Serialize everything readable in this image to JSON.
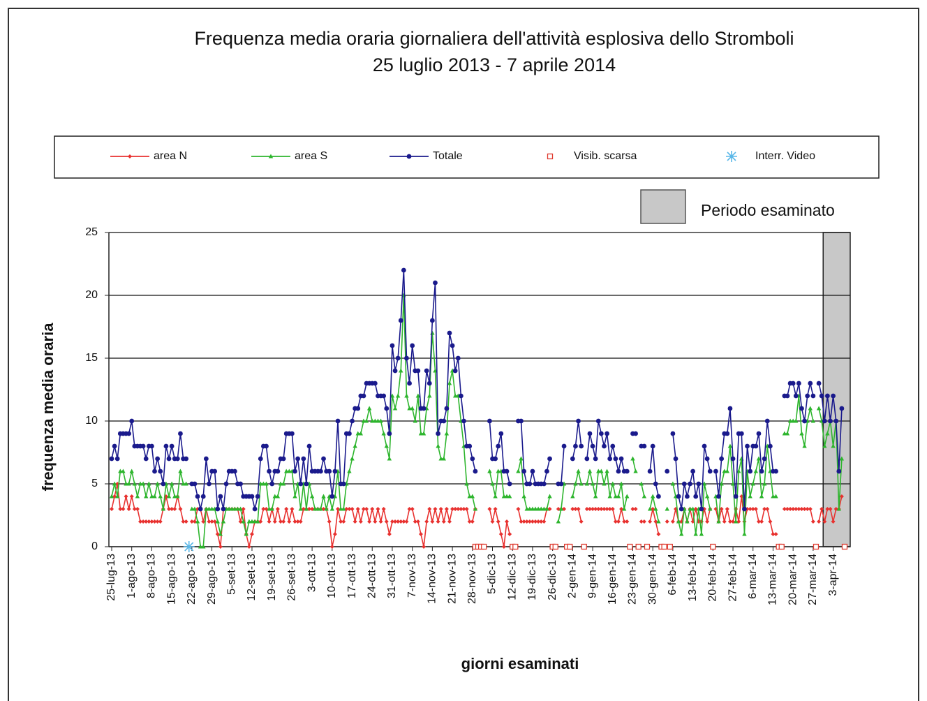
{
  "chart_data": {
    "type": "line",
    "title": "Frequenza media oraria giornaliera dell'attività esplosiva dello Stromboli",
    "subtitle": "25 luglio 2013 - 7 aprile 2014",
    "x_label": "giorni esaminati",
    "y_label": "frequenza  media oraria",
    "ylim": [
      0,
      25
    ],
    "yticks": [
      0,
      5,
      10,
      15,
      20,
      25
    ],
    "grid": true,
    "highlight": {
      "label": "Periodo esaminato",
      "from": "31-mar-14",
      "color": "#c8c8c8"
    },
    "xticks": [
      "25-lug-13",
      "1-ago-13",
      "8-ago-13",
      "15-ago-13",
      "22-ago-13",
      "29-ago-13",
      "5-set-13",
      "12-set-13",
      "19-set-13",
      "26-set-13",
      "3-ott-13",
      "10-ott-13",
      "17-ott-13",
      "24-ott-13",
      "31-ott-13",
      "7-nov-13",
      "14-nov-13",
      "21-nov-13",
      "28-nov-13",
      "5-dic-13",
      "12-dic-13",
      "19-dic-13",
      "26-dic-13",
      "2-gen-14",
      "9-gen-14",
      "16-gen-14",
      "23-gen-14",
      "30-gen-14",
      "6-feb-14",
      "13-feb-14",
      "20-feb-14",
      "27-feb-14",
      "6-mar-14",
      "13-mar-14",
      "20-mar-14",
      "27-mar-14",
      "3-apr-14"
    ],
    "x": [
      "25-lug-13",
      "26-lug-13",
      "27-lug-13",
      "28-lug-13",
      "29-lug-13",
      "30-lug-13",
      "31-lug-13",
      "1-ago-13",
      "2-ago-13",
      "3-ago-13",
      "4-ago-13",
      "5-ago-13",
      "6-ago-13",
      "7-ago-13",
      "8-ago-13",
      "9-ago-13",
      "10-ago-13",
      "11-ago-13",
      "12-ago-13",
      "13-ago-13",
      "14-ago-13",
      "15-ago-13",
      "16-ago-13",
      "17-ago-13",
      "18-ago-13",
      "19-ago-13",
      "20-ago-13",
      "21-ago-13",
      "22-ago-13",
      "23-ago-13",
      "24-ago-13",
      "25-ago-13",
      "26-ago-13",
      "27-ago-13",
      "28-ago-13",
      "29-ago-13",
      "30-ago-13",
      "31-ago-13",
      "1-set-13",
      "2-set-13",
      "3-set-13",
      "4-set-13",
      "5-set-13",
      "6-set-13",
      "7-set-13",
      "8-set-13",
      "9-set-13",
      "10-set-13",
      "11-set-13",
      "12-set-13",
      "13-set-13",
      "14-set-13",
      "15-set-13",
      "16-set-13",
      "17-set-13",
      "18-set-13",
      "19-set-13",
      "20-set-13",
      "21-set-13",
      "22-set-13",
      "23-set-13",
      "24-set-13",
      "25-set-13",
      "26-set-13",
      "27-set-13",
      "28-set-13",
      "29-set-13",
      "30-set-13",
      "1-ott-13",
      "2-ott-13",
      "3-ott-13",
      "4-ott-13",
      "5-ott-13",
      "6-ott-13",
      "7-ott-13",
      "8-ott-13",
      "9-ott-13",
      "10-ott-13",
      "11-ott-13",
      "12-ott-13",
      "13-ott-13",
      "14-ott-13",
      "15-ott-13",
      "16-ott-13",
      "17-ott-13",
      "18-ott-13",
      "19-ott-13",
      "20-ott-13",
      "21-ott-13",
      "22-ott-13",
      "23-ott-13",
      "24-ott-13",
      "25-ott-13",
      "26-ott-13",
      "27-ott-13",
      "28-ott-13",
      "29-ott-13",
      "30-ott-13",
      "31-ott-13",
      "1-nov-13",
      "2-nov-13",
      "3-nov-13",
      "4-nov-13",
      "5-nov-13",
      "6-nov-13",
      "7-nov-13",
      "8-nov-13",
      "9-nov-13",
      "10-nov-13",
      "11-nov-13",
      "12-nov-13",
      "13-nov-13",
      "14-nov-13",
      "15-nov-13",
      "16-nov-13",
      "17-nov-13",
      "18-nov-13",
      "19-nov-13",
      "20-nov-13",
      "21-nov-13",
      "22-nov-13",
      "23-nov-13",
      "24-nov-13",
      "25-nov-13",
      "26-nov-13",
      "27-nov-13",
      "28-nov-13",
      "29-nov-13",
      "30-nov-13",
      "1-dic-13",
      "2-dic-13",
      "3-dic-13",
      "4-dic-13",
      "5-dic-13",
      "6-dic-13",
      "7-dic-13",
      "8-dic-13",
      "9-dic-13",
      "10-dic-13",
      "11-dic-13",
      "12-dic-13",
      "13-dic-13",
      "14-dic-13",
      "15-dic-13",
      "16-dic-13",
      "17-dic-13",
      "18-dic-13",
      "19-dic-13",
      "20-dic-13",
      "21-dic-13",
      "22-dic-13",
      "23-dic-13",
      "24-dic-13",
      "25-dic-13",
      "26-dic-13",
      "27-dic-13",
      "28-dic-13",
      "29-dic-13",
      "30-dic-13",
      "31-dic-13",
      "1-gen-14",
      "2-gen-14",
      "3-gen-14",
      "4-gen-14",
      "5-gen-14",
      "6-gen-14",
      "7-gen-14",
      "8-gen-14",
      "9-gen-14",
      "10-gen-14",
      "11-gen-14",
      "12-gen-14",
      "13-gen-14",
      "14-gen-14",
      "15-gen-14",
      "16-gen-14",
      "17-gen-14",
      "18-gen-14",
      "19-gen-14",
      "20-gen-14",
      "21-gen-14",
      "22-gen-14",
      "23-gen-14",
      "24-gen-14",
      "25-gen-14",
      "26-gen-14",
      "27-gen-14",
      "28-gen-14",
      "29-gen-14",
      "30-gen-14",
      "31-gen-14",
      "1-feb-14",
      "2-feb-14",
      "3-feb-14",
      "4-feb-14",
      "5-feb-14",
      "6-feb-14",
      "7-feb-14",
      "8-feb-14",
      "9-feb-14",
      "10-feb-14",
      "11-feb-14",
      "12-feb-14",
      "13-feb-14",
      "14-feb-14",
      "15-feb-14",
      "16-feb-14",
      "17-feb-14",
      "18-feb-14",
      "19-feb-14",
      "20-feb-14",
      "21-feb-14",
      "22-feb-14",
      "23-feb-14",
      "24-feb-14",
      "25-feb-14",
      "26-feb-14",
      "27-feb-14",
      "28-feb-14",
      "1-mar-14",
      "2-mar-14",
      "3-mar-14",
      "4-mar-14",
      "5-mar-14",
      "6-mar-14",
      "7-mar-14",
      "8-mar-14",
      "9-mar-14",
      "10-mar-14",
      "11-mar-14",
      "12-mar-14",
      "13-mar-14",
      "14-mar-14",
      "15-mar-14",
      "16-mar-14",
      "17-mar-14",
      "18-mar-14",
      "19-mar-14",
      "20-mar-14",
      "21-mar-14",
      "22-mar-14",
      "23-mar-14",
      "24-mar-14",
      "25-mar-14",
      "26-mar-14",
      "27-mar-14",
      "28-mar-14",
      "29-mar-14",
      "30-mar-14",
      "31-mar-14",
      "1-apr-14",
      "2-apr-14",
      "3-apr-14",
      "4-apr-14",
      "5-apr-14",
      "6-apr-14",
      "7-apr-14"
    ],
    "series": [
      {
        "name": "area N",
        "color": "#e8312f",
        "marker": "diamond",
        "values": [
          3,
          4,
          5,
          3,
          3,
          4,
          3,
          4,
          3,
          3,
          2,
          2,
          2,
          2,
          2,
          2,
          2,
          2,
          3,
          4,
          3,
          3,
          3,
          4,
          3,
          2,
          2,
          null,
          2,
          2,
          3,
          3,
          2,
          3,
          2,
          2,
          2,
          1,
          0,
          3,
          3,
          3,
          3,
          3,
          3,
          2,
          3,
          1,
          0,
          1,
          2,
          2,
          2,
          3,
          3,
          2,
          3,
          2,
          3,
          2,
          2,
          3,
          2,
          3,
          2,
          2,
          2,
          3,
          3,
          3,
          3,
          3,
          3,
          3,
          3,
          3,
          2,
          0,
          1,
          3,
          2,
          2,
          3,
          3,
          3,
          2,
          3,
          2,
          3,
          3,
          2,
          3,
          2,
          3,
          2,
          3,
          2,
          1,
          2,
          2,
          2,
          2,
          2,
          2,
          3,
          3,
          2,
          2,
          1,
          0,
          2,
          3,
          2,
          3,
          2,
          3,
          2,
          3,
          2,
          3,
          3,
          3,
          3,
          3,
          3,
          2,
          2,
          3,
          null,
          null,
          null,
          null,
          3,
          2,
          3,
          2,
          1,
          0,
          2,
          1,
          null,
          null,
          3,
          2,
          2,
          2,
          2,
          2,
          2,
          2,
          2,
          2,
          3,
          3,
          null,
          null,
          3,
          3,
          3,
          null,
          null,
          3,
          3,
          3,
          2,
          null,
          3,
          3,
          3,
          3,
          3,
          3,
          3,
          3,
          3,
          3,
          2,
          2,
          3,
          2,
          2,
          null,
          3,
          3,
          null,
          2,
          2,
          null,
          2,
          3,
          2,
          1,
          null,
          null,
          2,
          null,
          2,
          3,
          2,
          2,
          3,
          2,
          3,
          2,
          3,
          2,
          2,
          3,
          2,
          3,
          null,
          3,
          2,
          3,
          2,
          3,
          2,
          2,
          3,
          2,
          4,
          2,
          3,
          3,
          3,
          3,
          2,
          2,
          3,
          3,
          2,
          1,
          1,
          null,
          null,
          3,
          3,
          3,
          3,
          3,
          3,
          3,
          3,
          3,
          3,
          2,
          null,
          2,
          3,
          2,
          3,
          3,
          2,
          3,
          3,
          4,
          null
        ]
      },
      {
        "name": "area S",
        "color": "#2db52d",
        "marker": "triangle",
        "values": [
          4,
          5,
          4,
          6,
          6,
          5,
          5,
          6,
          5,
          4,
          5,
          5,
          4,
          5,
          4,
          4,
          5,
          4,
          3,
          5,
          4,
          5,
          4,
          4,
          6,
          5,
          5,
          null,
          3,
          3,
          2,
          0,
          0,
          3,
          3,
          3,
          3,
          2,
          1,
          2,
          3,
          3,
          3,
          3,
          3,
          3,
          2,
          1,
          2,
          2,
          2,
          2,
          5,
          5,
          5,
          3,
          3,
          4,
          4,
          5,
          5,
          6,
          6,
          6,
          4,
          5,
          3,
          5,
          3,
          5,
          4,
          3,
          3,
          3,
          4,
          3,
          4,
          3,
          4,
          6,
          3,
          3,
          5,
          6,
          7,
          8,
          9,
          9,
          10,
          10,
          11,
          10,
          10,
          10,
          10,
          9,
          8,
          7,
          12,
          11,
          12,
          14,
          20,
          12,
          11,
          11,
          10,
          12,
          9,
          9,
          11,
          12,
          17,
          14,
          8,
          7,
          7,
          9,
          13,
          14,
          12,
          12,
          10,
          8,
          5,
          4,
          4,
          3,
          null,
          null,
          null,
          null,
          6,
          5,
          4,
          6,
          6,
          4,
          4,
          4,
          null,
          null,
          6,
          7,
          4,
          3,
          3,
          3,
          3,
          3,
          3,
          3,
          3,
          4,
          null,
          null,
          2,
          3,
          5,
          null,
          null,
          4,
          5,
          6,
          5,
          null,
          5,
          6,
          5,
          4,
          6,
          6,
          5,
          6,
          4,
          5,
          4,
          4,
          5,
          3,
          4,
          null,
          7,
          6,
          null,
          5,
          4,
          null,
          3,
          4,
          3,
          2,
          null,
          null,
          3,
          null,
          5,
          4,
          2,
          1,
          3,
          2,
          3,
          3,
          1,
          3,
          1,
          5,
          4,
          3,
          null,
          4,
          2,
          5,
          6,
          6,
          8,
          5,
          2,
          6,
          7,
          1,
          6,
          4,
          5,
          6,
          7,
          4,
          5,
          8,
          6,
          4,
          4,
          null,
          null,
          9,
          9,
          10,
          10,
          10,
          12,
          9,
          8,
          10,
          11,
          10,
          null,
          11,
          10,
          8,
          9,
          10,
          8,
          10,
          3,
          7,
          null
        ]
      },
      {
        "name": "Totale",
        "color": "#1a1a8c",
        "marker": "circle",
        "values": [
          7,
          8,
          7,
          9,
          9,
          9,
          9,
          10,
          8,
          8,
          8,
          8,
          7,
          8,
          8,
          6,
          7,
          6,
          5,
          8,
          7,
          8,
          7,
          7,
          9,
          7,
          7,
          null,
          5,
          5,
          4,
          3,
          4,
          7,
          5,
          6,
          6,
          3,
          4,
          3,
          5,
          6,
          6,
          6,
          5,
          5,
          4,
          4,
          4,
          4,
          3,
          4,
          7,
          8,
          8,
          6,
          5,
          6,
          6,
          7,
          7,
          9,
          9,
          9,
          6,
          7,
          5,
          7,
          5,
          8,
          6,
          6,
          6,
          6,
          7,
          6,
          6,
          4,
          6,
          10,
          5,
          5,
          9,
          9,
          10,
          11,
          11,
          12,
          12,
          13,
          13,
          13,
          13,
          12,
          12,
          12,
          11,
          9,
          16,
          14,
          15,
          18,
          22,
          15,
          13,
          16,
          14,
          14,
          11,
          11,
          14,
          13,
          18,
          21,
          9,
          10,
          10,
          11,
          17,
          16,
          14,
          15,
          12,
          10,
          8,
          8,
          7,
          6,
          null,
          null,
          null,
          null,
          10,
          7,
          7,
          8,
          9,
          6,
          6,
          5,
          null,
          null,
          10,
          10,
          6,
          5,
          5,
          6,
          5,
          5,
          5,
          5,
          6,
          7,
          null,
          null,
          5,
          5,
          8,
          null,
          null,
          7,
          8,
          10,
          8,
          null,
          7,
          9,
          8,
          7,
          10,
          9,
          8,
          9,
          7,
          8,
          7,
          6,
          7,
          6,
          6,
          null,
          9,
          9,
          null,
          8,
          8,
          null,
          6,
          8,
          5,
          4,
          null,
          null,
          6,
          null,
          9,
          7,
          4,
          3,
          5,
          4,
          5,
          6,
          4,
          5,
          3,
          8,
          7,
          6,
          null,
          6,
          4,
          7,
          9,
          9,
          11,
          7,
          4,
          9,
          9,
          3,
          8,
          6,
          8,
          8,
          9,
          6,
          7,
          10,
          8,
          6,
          6,
          null,
          null,
          12,
          12,
          13,
          13,
          12,
          13,
          11,
          10,
          12,
          13,
          12,
          null,
          13,
          12,
          10,
          12,
          10,
          12,
          10,
          6,
          11,
          null
        ]
      },
      {
        "name": "Visib. scarsa",
        "color": "#e03c31",
        "marker": "square-open",
        "x": [
          "29-nov-13",
          "30-nov-13",
          "1-dic-13",
          "2-dic-13",
          "12-dic-13",
          "13-dic-13",
          "26-dic-13",
          "27-dic-13",
          "31-dic-13",
          "1-gen-14",
          "6-gen-14",
          "22-gen-14",
          "25-gen-14",
          "28-gen-14",
          "2-feb-14",
          "3-feb-14",
          "5-feb-14",
          "20-feb-14",
          "15-mar-14",
          "16-mar-14",
          "28-mar-14",
          "7-apr-14"
        ],
        "values": [
          0,
          0,
          0,
          0,
          0,
          0,
          0,
          0,
          0,
          0,
          0,
          0,
          0,
          0,
          0,
          0,
          0,
          0,
          0,
          0,
          0,
          0
        ]
      },
      {
        "name": "Interr. Video",
        "color": "#5bb8e8",
        "marker": "asterisk",
        "x": [
          "21-ago-13"
        ],
        "values": [
          0
        ]
      }
    ]
  }
}
